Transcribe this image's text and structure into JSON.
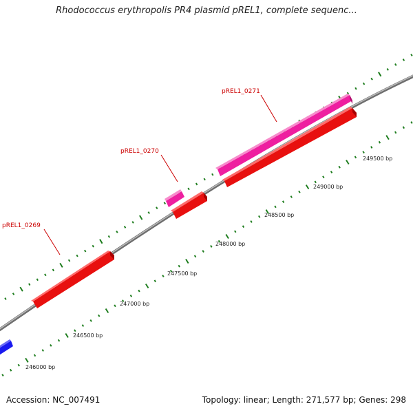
{
  "title": "Rhodococcus erythropolis PR4 plasmid pREL1, complete sequenc...",
  "footer": {
    "accession": "Accession: NC_007491",
    "summary": "Topology: linear; Length: 271,577 bp; Genes: 298"
  },
  "colors": {
    "background": "#ffffff",
    "backbone": "#8c8c8c",
    "tick": "#1e7d1e",
    "forward_gene": "#ee1fa0",
    "reverse_gene": "#e8100f",
    "other_strand_gene": "#1a1af0",
    "label": "#cc0000",
    "leader_line": "#cc0000"
  },
  "scale_labels": [
    "246000 bp",
    "246500 bp",
    "247000 bp",
    "247500 bp",
    "248000 bp",
    "248500 bp",
    "249000 bp",
    "249500 bp"
  ],
  "gene_labels": [
    "pREL1_0269",
    "pREL1_0270",
    "pREL1_0271"
  ]
}
